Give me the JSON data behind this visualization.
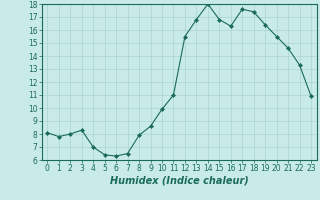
{
  "x": [
    0,
    1,
    2,
    3,
    4,
    5,
    6,
    7,
    8,
    9,
    10,
    11,
    12,
    13,
    14,
    15,
    16,
    17,
    18,
    19,
    20,
    21,
    22,
    23
  ],
  "y": [
    8.1,
    7.8,
    8.0,
    8.3,
    7.0,
    6.4,
    6.3,
    6.5,
    7.9,
    8.6,
    9.9,
    11.0,
    15.5,
    16.8,
    18.0,
    16.8,
    16.3,
    17.6,
    17.4,
    16.4,
    15.5,
    14.6,
    13.3,
    10.9
  ],
  "line_color": "#1a6b5a",
  "marker": "D",
  "marker_size": 2.0,
  "bg_color": "#c8eae8",
  "grid_color": "#aad4d0",
  "xlabel": "Humidex (Indice chaleur)",
  "ylim": [
    6,
    18
  ],
  "xlim_min": -0.5,
  "xlim_max": 23.5,
  "yticks": [
    6,
    7,
    8,
    9,
    10,
    11,
    12,
    13,
    14,
    15,
    16,
    17,
    18
  ],
  "xticks": [
    0,
    1,
    2,
    3,
    4,
    5,
    6,
    7,
    8,
    9,
    10,
    11,
    12,
    13,
    14,
    15,
    16,
    17,
    18,
    19,
    20,
    21,
    22,
    23
  ],
  "tick_color": "#1a6b5a",
  "xlabel_fontsize": 7,
  "tick_fontsize": 5.5,
  "linewidth": 0.8
}
